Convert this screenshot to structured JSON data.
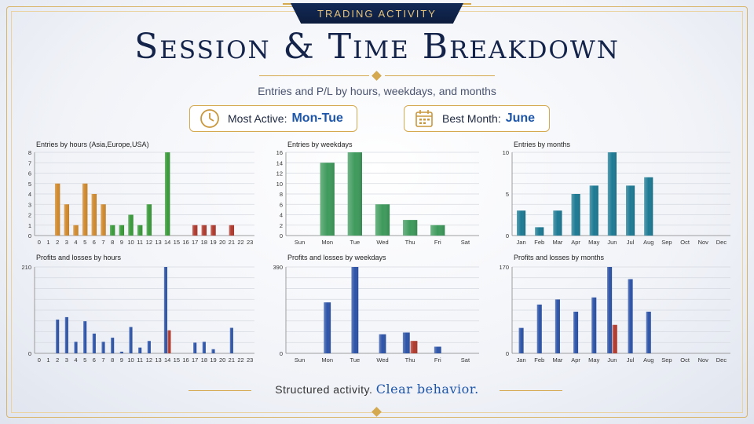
{
  "header": {
    "tab_label": "TRADING ACTIVITY"
  },
  "title": "Session & Time Breakdown",
  "subtitle": "Entries and P/L by hours, weekdays, and months",
  "badges": {
    "most_active": {
      "label": "Most Active:",
      "value": "Mon-Tue",
      "icon": "clock-icon"
    },
    "best_month": {
      "label": "Best Month:",
      "value": "June",
      "icon": "calendar-icon"
    }
  },
  "footer": {
    "text": "Structured activity.",
    "emphasis": "Clear behavior."
  },
  "colors": {
    "accent": "#d4a94f",
    "navy": "#14234a",
    "highlight": "#1d55a8",
    "loss": "#b03a2e"
  },
  "chart_data": [
    {
      "id": "hours_entries",
      "type": "bar",
      "title": "Entries by hours (Asia,Europe,USA)",
      "categories": [
        "0",
        "1",
        "2",
        "3",
        "4",
        "5",
        "6",
        "7",
        "8",
        "9",
        "10",
        "11",
        "12",
        "13",
        "14",
        "15",
        "16",
        "17",
        "18",
        "19",
        "20",
        "21",
        "22",
        "23"
      ],
      "values": [
        0,
        0,
        5,
        3,
        1,
        5,
        4,
        3,
        1,
        1,
        2,
        1,
        3,
        0,
        8,
        0,
        0,
        1,
        1,
        1,
        0,
        1,
        0,
        0
      ],
      "bar_colors": [
        "#d08a2e",
        "#d08a2e",
        "#d08a2e",
        "#d08a2e",
        "#d08a2e",
        "#d08a2e",
        "#d08a2e",
        "#d08a2e",
        "#3a9a3a",
        "#3a9a3a",
        "#3a9a3a",
        "#3a9a3a",
        "#3a9a3a",
        "#3a9a3a",
        "#3a9a3a",
        "#b03a2e",
        "#b03a2e",
        "#b03a2e",
        "#b03a2e",
        "#b03a2e",
        "#b03a2e",
        "#b03a2e",
        "#b03a2e",
        "#b03a2e"
      ],
      "yticks": [
        0,
        1,
        2,
        3,
        4,
        5,
        6,
        7,
        8
      ],
      "ylim": [
        0,
        8
      ],
      "grid": true
    },
    {
      "id": "weekday_entries",
      "type": "bar",
      "title": "Entries by weekdays",
      "categories": [
        "Sun",
        "Mon",
        "Tue",
        "Wed",
        "Thu",
        "Fri",
        "Sat"
      ],
      "values": [
        0,
        14,
        16,
        6,
        3,
        2,
        0
      ],
      "bar_colors": [
        "#3e9a5c",
        "#3e9a5c",
        "#3e9a5c",
        "#3e9a5c",
        "#3e9a5c",
        "#3e9a5c",
        "#3e9a5c"
      ],
      "yticks": [
        0,
        2,
        4,
        6,
        8,
        10,
        12,
        14,
        16
      ],
      "ylim": [
        0,
        16
      ],
      "grid": true
    },
    {
      "id": "month_entries",
      "type": "bar",
      "title": "Entries by months",
      "categories": [
        "Jan",
        "Feb",
        "Mar",
        "Apr",
        "May",
        "Jun",
        "Jul",
        "Aug",
        "Sep",
        "Oct",
        "Nov",
        "Dec"
      ],
      "values": [
        3,
        1,
        3,
        5,
        6,
        10,
        6,
        7,
        0,
        0,
        0,
        0
      ],
      "bar_colors": [
        "#1d7a93",
        "#1d7a93",
        "#1d7a93",
        "#1d7a93",
        "#1d7a93",
        "#1d7a93",
        "#1d7a93",
        "#1d7a93",
        "#1d7a93",
        "#1d7a93",
        "#1d7a93",
        "#1d7a93"
      ],
      "yticks": [
        0,
        5,
        10
      ],
      "ylim": [
        0,
        10
      ],
      "grid": true
    },
    {
      "id": "hours_pl",
      "type": "bar",
      "title": "Profits and losses by hours",
      "categories": [
        "0",
        "1",
        "2",
        "3",
        "4",
        "5",
        "6",
        "7",
        "8",
        "9",
        "10",
        "11",
        "12",
        "13",
        "14",
        "15",
        "16",
        "17",
        "18",
        "19",
        "20",
        "21",
        "22",
        "23"
      ],
      "series": [
        {
          "values": [
            0,
            0,
            82,
            88,
            28,
            78,
            48,
            28,
            38,
            4,
            64,
            14,
            30,
            0,
            210,
            0,
            0,
            26,
            28,
            10,
            0,
            62,
            0,
            0
          ],
          "color": "#2d54a8"
        },
        {
          "values": [
            0,
            0,
            0,
            0,
            0,
            0,
            0,
            0,
            0,
            0,
            0,
            0,
            0,
            0,
            56,
            0,
            0,
            0,
            0,
            0,
            0,
            0,
            0,
            0
          ],
          "color": "#b03a2e"
        }
      ],
      "yticks": [
        0,
        210
      ],
      "ylim": [
        0,
        210
      ],
      "grid": true
    },
    {
      "id": "weekday_pl",
      "type": "bar",
      "title": "Profits and losses by weekdays",
      "categories": [
        "Sun",
        "Mon",
        "Tue",
        "Wed",
        "Thu",
        "Fri",
        "Sat"
      ],
      "series": [
        {
          "values": [
            0,
            230,
            390,
            86,
            94,
            30,
            0
          ],
          "color": "#2d54a8"
        },
        {
          "values": [
            0,
            0,
            0,
            0,
            56,
            0,
            0
          ],
          "color": "#b03a2e"
        }
      ],
      "yticks": [
        0,
        390
      ],
      "ylim": [
        0,
        390
      ],
      "grid": true
    },
    {
      "id": "month_pl",
      "type": "bar",
      "title": "Profits and losses by months",
      "categories": [
        "Jan",
        "Feb",
        "Mar",
        "Apr",
        "May",
        "Jun",
        "Jul",
        "Aug",
        "Sep",
        "Oct",
        "Nov",
        "Dec"
      ],
      "series": [
        {
          "values": [
            50,
            96,
            106,
            82,
            110,
            170,
            146,
            82,
            0,
            0,
            0,
            0
          ],
          "color": "#2d54a8"
        },
        {
          "values": [
            0,
            0,
            0,
            0,
            0,
            56,
            0,
            0,
            0,
            0,
            0,
            0
          ],
          "color": "#b03a2e"
        }
      ],
      "yticks": [
        0,
        170
      ],
      "ylim": [
        0,
        170
      ],
      "grid": true
    }
  ]
}
